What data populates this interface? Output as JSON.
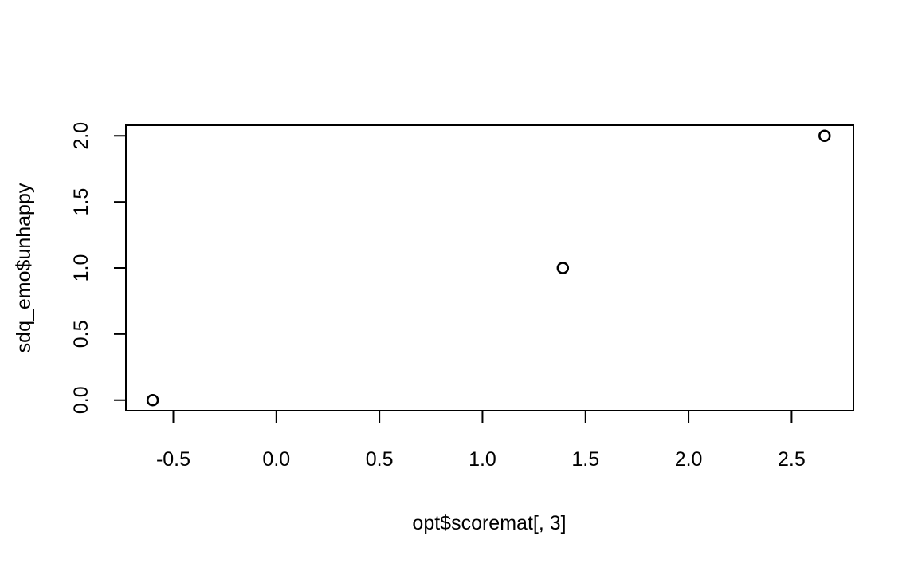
{
  "chart_data": {
    "type": "scatter",
    "title": "",
    "xlabel": "opt$scoremat[, 3]",
    "ylabel": "sdq_emo$unhappy",
    "xlim": [
      -0.73,
      2.8
    ],
    "ylim": [
      -0.08,
      2.08
    ],
    "x_ticks": [
      -0.5,
      0.0,
      0.5,
      1.0,
      1.5,
      2.0,
      2.5
    ],
    "x_tick_labels": [
      "-0.5",
      "0.0",
      "0.5",
      "1.0",
      "1.5",
      "2.0",
      "2.5"
    ],
    "y_ticks": [
      0.0,
      0.5,
      1.0,
      1.5,
      2.0
    ],
    "y_tick_labels": [
      "0.0",
      "0.5",
      "1.0",
      "1.5",
      "2.0"
    ],
    "grid": false,
    "legend": "none",
    "marker": "open-circle",
    "point_color": "#000000",
    "points": [
      {
        "x": -0.6,
        "y": 0.0
      },
      {
        "x": 1.39,
        "y": 1.0
      },
      {
        "x": 2.66,
        "y": 2.0
      }
    ]
  }
}
